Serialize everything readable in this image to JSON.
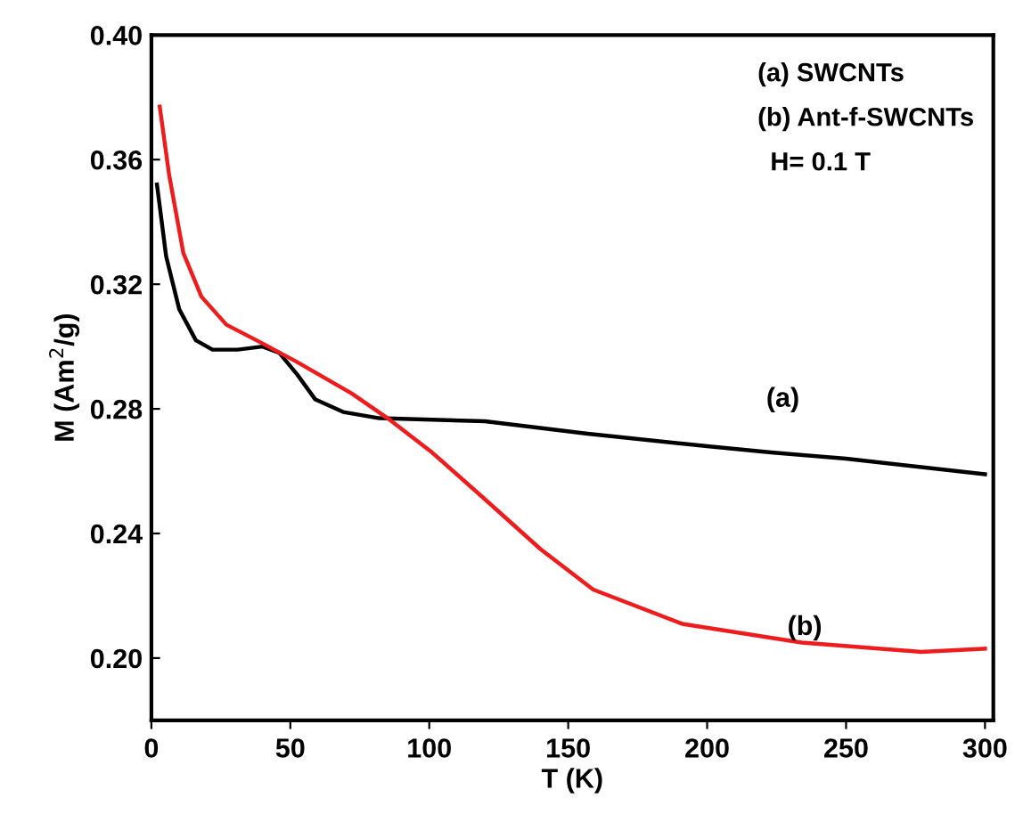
{
  "chart_data": {
    "type": "line",
    "xlabel": "T (K)",
    "ylabel": "M (Am$^{2}$/g)",
    "xlim": [
      0,
      303
    ],
    "ylim": [
      0.18,
      0.4
    ],
    "xticks": [
      0,
      50,
      100,
      150,
      200,
      250,
      300
    ],
    "yticks": [
      {
        "value": 0.2,
        "label": "0.20"
      },
      0.24,
      0.28,
      0.32,
      0.36,
      {
        "value": 0.4,
        "label": "0.40"
      }
    ],
    "grid": false,
    "marker": "none",
    "line_style": "solid",
    "series": [
      {
        "color": "#000000",
        "x": [
          2,
          5.3,
          10,
          16,
          22,
          31,
          40,
          46,
          52.5,
          59,
          69,
          82,
          120,
          157,
          200,
          223,
          250,
          300
        ],
        "values": [
          0.352,
          0.329,
          0.312,
          0.302,
          0.299,
          0.299,
          0.3,
          0.298,
          0.291,
          0.283,
          0.279,
          0.277,
          0.276,
          0.272,
          0.268,
          0.266,
          0.264,
          0.259
        ]
      },
      {
        "color": "#ee1c1c",
        "x": [
          3,
          6.4,
          11.5,
          18,
          27,
          40,
          52.5,
          72,
          85,
          101,
          120,
          140,
          159,
          191,
          234,
          277,
          300
        ],
        "values": [
          0.377,
          0.355,
          0.33,
          0.316,
          0.307,
          0.301,
          0.295,
          0.285,
          0.277,
          0.266,
          0.251,
          0.235,
          0.222,
          0.211,
          0.205,
          0.202,
          0.203
        ]
      }
    ],
    "annotations": [
      "(a) SWCNTs",
      "(b) Ant-f-SWCNTs",
      "H= 0.1 T",
      "(a)",
      "(b)"
    ]
  }
}
